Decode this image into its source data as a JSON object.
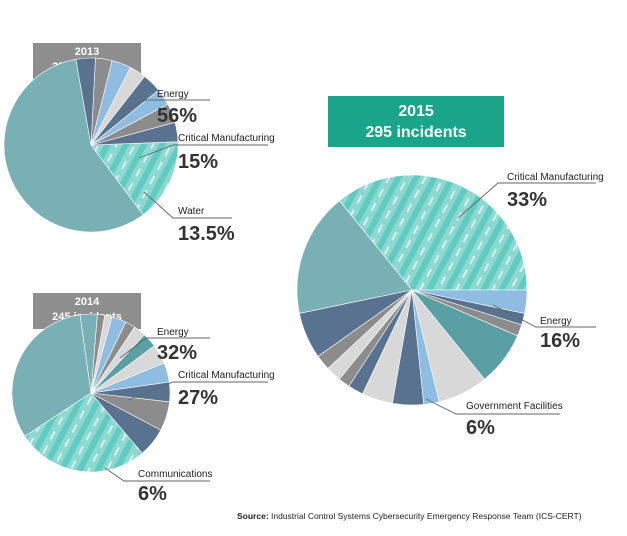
{
  "colors": {
    "energy": "#79b0b5",
    "manufacturing_base": "#8ed8d2",
    "manufacturing_accent": "#3cc0b4",
    "slate": "#58728f",
    "grey": "#8c8c8c",
    "light_grey": "#d8d8d8",
    "sky": "#8fbde2",
    "teal_dark": "#5a9fa3",
    "line": "#666666",
    "badge_small": "#8e8e8e",
    "badge_big": "#18a58a"
  },
  "source": {
    "label": "Source:",
    "text": " Industrial Control Systems Cybersecurity Emergency Response Team (ICS-CERT)"
  },
  "chart_data": [
    {
      "type": "pie",
      "year": "2013",
      "subtitle": "257 incidents",
      "labeled_slices": [
        {
          "name": "Energy",
          "value": 56,
          "pct_label": "56%"
        },
        {
          "name": "Critical Manufacturing",
          "value": 15,
          "pct_label": "15%"
        },
        {
          "name": "Water",
          "value": 13.5,
          "pct_label": "13.5%"
        }
      ],
      "slices": [
        {
          "value": 56,
          "color": "energy"
        },
        {
          "value": 15,
          "color": "manufacturing"
        },
        {
          "value": 3.5,
          "color": "slate"
        },
        {
          "value": 3.5,
          "color": "grey"
        },
        {
          "value": 3,
          "color": "sky"
        },
        {
          "value": 3.5,
          "color": "slate"
        },
        {
          "value": 3,
          "color": "light_grey"
        },
        {
          "value": 3.5,
          "color": "sky"
        },
        {
          "value": 3,
          "color": "grey"
        },
        {
          "value": 3.5,
          "color": "slate"
        }
      ]
    },
    {
      "type": "pie",
      "year": "2014",
      "subtitle": "245 incidents",
      "labeled_slices": [
        {
          "name": "Energy",
          "value": 32,
          "pct_label": "32%"
        },
        {
          "name": "Critical Manufacturing",
          "value": 27,
          "pct_label": "27%"
        },
        {
          "name": "Communications",
          "value": 6,
          "pct_label": "6%"
        }
      ],
      "slices": [
        {
          "value": 32,
          "color": "energy"
        },
        {
          "value": 27,
          "color": "manufacturing"
        },
        {
          "value": 6,
          "color": "slate"
        },
        {
          "value": 6,
          "color": "grey"
        },
        {
          "value": 4,
          "color": "slate"
        },
        {
          "value": 4,
          "color": "sky"
        },
        {
          "value": 4,
          "color": "light_grey"
        },
        {
          "value": 3,
          "color": "teal_dark"
        },
        {
          "value": 2.5,
          "color": "light_grey"
        },
        {
          "value": 2,
          "color": "grey"
        },
        {
          "value": 3,
          "color": "sky"
        },
        {
          "value": 1.5,
          "color": "light_grey"
        },
        {
          "value": 1.5,
          "color": "grey"
        },
        {
          "value": 3.5,
          "color": "energy"
        }
      ]
    },
    {
      "type": "pie",
      "year": "2015",
      "subtitle": "295 incidents",
      "labeled_slices": [
        {
          "name": "Critical Manufacturing",
          "value": 33,
          "pct_label": "33%"
        },
        {
          "name": "Energy",
          "value": 16,
          "pct_label": "16%"
        },
        {
          "name": "Government Facilities",
          "value": 6,
          "pct_label": "6%"
        }
      ],
      "slices": [
        {
          "value": 33,
          "color": "manufacturing"
        },
        {
          "value": 16,
          "color": "energy"
        },
        {
          "value": 6,
          "color": "slate"
        },
        {
          "value": 2,
          "color": "grey"
        },
        {
          "value": 2,
          "color": "light_grey"
        },
        {
          "value": 1.5,
          "color": "grey"
        },
        {
          "value": 2,
          "color": "slate"
        },
        {
          "value": 4,
          "color": "light_grey"
        },
        {
          "value": 4,
          "color": "slate"
        },
        {
          "value": 2,
          "color": "sky"
        },
        {
          "value": 6.5,
          "color": "light_grey"
        },
        {
          "value": 7,
          "color": "teal_dark"
        },
        {
          "value": 1.5,
          "color": "grey"
        },
        {
          "value": 1.5,
          "color": "slate"
        },
        {
          "value": 3,
          "color": "sky"
        }
      ]
    }
  ]
}
